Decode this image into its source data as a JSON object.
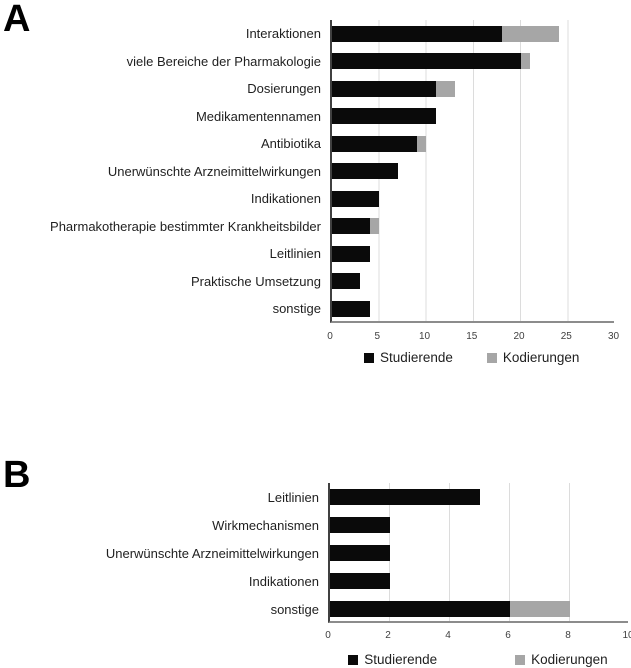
{
  "panels": [
    {
      "label": "A"
    },
    {
      "label": "B"
    }
  ],
  "colors": {
    "studierende": "#0a0a0a",
    "kodierungen": "#a6a6a6",
    "gridline": "#dcdcdc",
    "axis_line": "#8c8c8c",
    "text": "#1f1f1f"
  },
  "chart_data": [
    {
      "panel_label": "A",
      "type": "bar",
      "orientation": "horizontal",
      "stacked": true,
      "grid": true,
      "legend_position": "bottom",
      "categories": [
        "Interaktionen",
        "viele Bereiche der Pharmakologie",
        "Dosierungen",
        "Medikamentennamen",
        "Antibiotika",
        "Unerwünschte Arzneimittelwirkungen",
        "Indikationen",
        "Pharmakotherapie bestimmter Krankheitsbilder",
        "Leitlinien",
        "Praktische Umsetzung",
        "sonstige"
      ],
      "series": [
        {
          "name": "Studierende",
          "color": "#0a0a0a",
          "values": [
            18,
            20,
            11,
            11,
            9,
            7,
            5,
            4,
            4,
            3,
            4
          ]
        },
        {
          "name": "Kodierungen",
          "color": "#a6a6a6",
          "values": [
            6,
            1,
            2,
            0,
            1,
            0,
            0,
            1,
            0,
            0,
            0
          ]
        }
      ],
      "stack_totals": [
        24,
        21,
        13,
        11,
        10,
        7,
        5,
        5,
        4,
        3,
        4
      ],
      "x_ticks": [
        0,
        5,
        10,
        15,
        20,
        25,
        30
      ],
      "xlim": [
        0,
        30
      ],
      "legend": [
        "Studierende",
        "Kodierungen"
      ]
    },
    {
      "panel_label": "B",
      "type": "bar",
      "orientation": "horizontal",
      "stacked": true,
      "grid": true,
      "legend_position": "bottom",
      "categories": [
        "Leitlinien",
        "Wirkmechanismen",
        "Unerwünschte Arzneimittelwirkungen",
        "Indikationen",
        "sonstige"
      ],
      "series": [
        {
          "name": "Studierende",
          "color": "#0a0a0a",
          "values": [
            5,
            2,
            2,
            2,
            6
          ]
        },
        {
          "name": "Kodierungen",
          "color": "#a6a6a6",
          "values": [
            0,
            0,
            0,
            0,
            2
          ]
        }
      ],
      "stack_totals": [
        5,
        2,
        2,
        2,
        8
      ],
      "x_ticks": [
        0,
        2,
        4,
        6,
        8,
        10
      ],
      "xlim": [
        0,
        10
      ],
      "legend": [
        "Studierende",
        "Kodierungen"
      ]
    }
  ]
}
